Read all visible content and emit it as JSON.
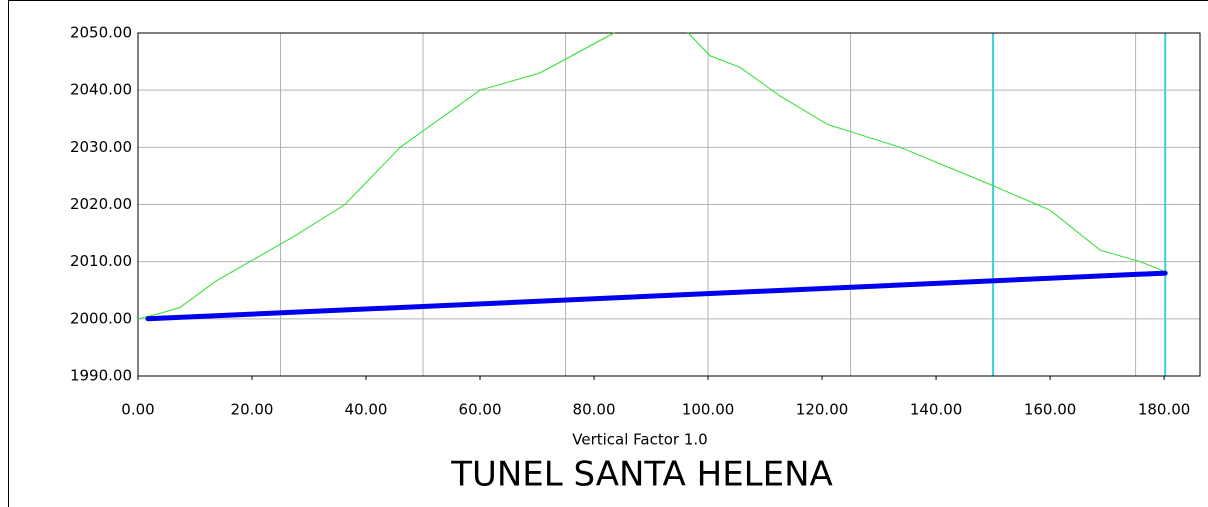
{
  "chart_data": {
    "type": "line",
    "title": "TUNEL SANTA HELENA",
    "subtitle": "Vertical Factor  1.0",
    "xlim": [
      0,
      186.3
    ],
    "ylim": [
      1990,
      2050
    ],
    "xticks": [
      {
        "value": 0,
        "label": "0.00"
      },
      {
        "value": 20,
        "label": "20.00"
      },
      {
        "value": 40,
        "label": "40.00"
      },
      {
        "value": 60,
        "label": "60.00"
      },
      {
        "value": 80,
        "label": "80.00"
      },
      {
        "value": 100,
        "label": "100.00"
      },
      {
        "value": 120,
        "label": "120.00"
      },
      {
        "value": 140,
        "label": "140.00"
      },
      {
        "value": 160,
        "label": "160.00"
      },
      {
        "value": 180,
        "label": "180.00"
      }
    ],
    "xgrid": [
      25,
      50,
      75,
      100,
      125,
      175
    ],
    "yticks": [
      {
        "value": 1990,
        "label": "1990.00"
      },
      {
        "value": 2000,
        "label": "2000.00"
      },
      {
        "value": 2010,
        "label": "2010.00"
      },
      {
        "value": 2020,
        "label": "2020.00"
      },
      {
        "value": 2030,
        "label": "2030.00"
      },
      {
        "value": 2040,
        "label": "2040.00"
      },
      {
        "value": 2050,
        "label": "2050.00"
      }
    ],
    "grid": true,
    "grid_color": "#b4b4b4",
    "vlines": {
      "color": "#3cd2dc",
      "values": [
        150,
        180.2
      ]
    },
    "series": [
      {
        "color": "#2ee02e",
        "width": 1,
        "x": [
          0,
          4,
          7.4,
          13.5,
          19.6,
          27.5,
          36.3,
          46,
          60,
          70.5,
          83.5,
          90,
          96.5,
          100.4,
          105.6,
          112.6,
          121,
          133.7,
          149.5,
          160,
          168.8,
          175.8,
          179.6,
          180.2
        ],
        "values": [
          2000,
          2001,
          2002,
          2006.5,
          2010,
          2014.5,
          2020,
          2030,
          2040,
          2043,
          2050,
          null,
          2050,
          2046,
          2044,
          2039,
          2034,
          2030,
          2023.5,
          2019,
          2012,
          2010,
          2008.5,
          2008
        ]
      },
      {
        "color": "#0000ee",
        "width": 5,
        "x": [
          1.75,
          180.2
        ],
        "values": [
          2000,
          2008
        ]
      }
    ]
  }
}
